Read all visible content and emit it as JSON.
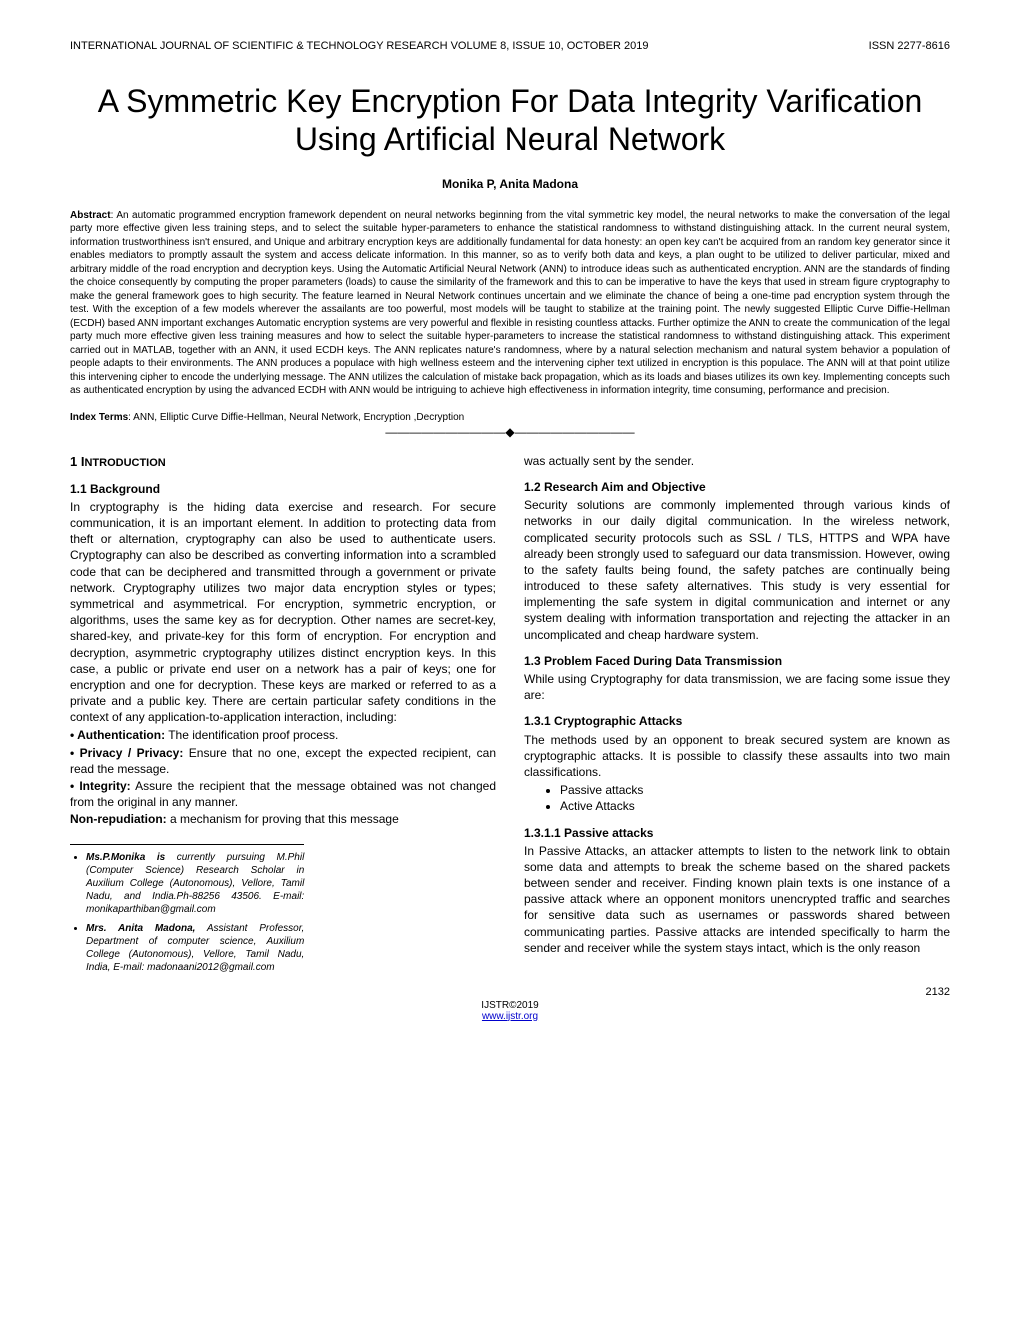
{
  "header": {
    "journal": "INTERNATIONAL JOURNAL OF SCIENTIFIC & TECHNOLOGY RESEARCH VOLUME 8, ISSUE 10, OCTOBER 2019",
    "issn": "ISSN 2277-8616"
  },
  "title": "A Symmetric Key Encryption For Data Integrity Varification Using Artificial Neural Network",
  "authors": "Monika P, Anita Madona",
  "abstract": {
    "label": "Abstract",
    "text": ": An automatic programmed encryption framework dependent on neural networks beginning from the vital symmetric key model, the neural networks to make the conversation of the legal party more effective given less training steps, and to select the suitable hyper-parameters to enhance the statistical randomness to withstand distinguishing attack. In the current neural system, information trustworthiness isn't ensured, and Unique and arbitrary encryption keys are additionally fundamental for data honesty: an open key can't be acquired from an random key generator since it enables mediators to promptly assault the system and access delicate information. In this manner, so as to verify both data and keys, a plan ought to be utilized to deliver particular, mixed and arbitrary middle of the road encryption and decryption keys. Using the Automatic Artificial Neural Network (ANN) to introduce ideas such as authenticated encryption.  ANN are the standards of finding the choice consequently by computing the proper parameters (loads) to cause the similarity of the framework and this to can be imperative to have the keys that used in stream figure cryptography to make the general framework goes to high security. The feature learned in Neural Network continues uncertain and we eliminate the chance of being a one-time pad encryption system through the test. With the exception of a few models wherever the assailants are too powerful, most models will be taught to stabilize at the training point. The newly suggested Elliptic Curve Diffie-Hellman (ECDH) based ANN important exchanges Automatic encryption systems are very powerful and flexible in resisting countless attacks. Further optimize the ANN to create the communication of the legal party much more effective given less training measures and how to select the suitable hyper-parameters to increase the statistical randomness to withstand distinguishing attack. This experiment carried out in MATLAB, together with an ANN, it used ECDH keys. The ANN replicates nature's randomness, where by a natural selection mechanism and natural system behavior a population of people adapts to their environments. The ANN produces a populace with high wellness esteem and the intervening cipher text utilized in encryption is this populace. The ANN will at that point utilize this intervening cipher to encode the underlying message. The ANN utilizes the calculation of mistake back propagation, which as its loads and biases utilizes its own key. Implementing concepts such as authenticated encryption by using the advanced ECDH with ANN would be intriguing to achieve high effectiveness in information integrity, time consuming, performance and precision."
  },
  "indexTerms": {
    "label": "Index Terms",
    "text": ": ANN, Elliptic Curve Diffie-Hellman, Neural Network, Encryption ,Decryption"
  },
  "divider": "————————————————————",
  "leftCol": {
    "h1": "1 INTRODUCTION",
    "h11": "1.1 Background",
    "p11": "In cryptography is the hiding data exercise and research. For secure communication, it is an important element. In addition to protecting data from theft or alternation, cryptography can also be used to authenticate users. Cryptography can also be described as converting information into a scrambled code that can be deciphered and transmitted through a government or private network. Cryptography utilizes two major data encryption styles or types; symmetrical and asymmetrical. For encryption, symmetric encryption, or algorithms, uses the same key as for decryption. Other names are secret-key, shared-key, and private-key for this form of encryption. For encryption and decryption, asymmetric cryptography utilizes distinct encryption keys. In this case, a public or private end user on a network has a pair of keys; one for encryption and one for decryption. These keys are marked or referred to as a private and a public key. There are certain particular safety conditions in the context of any application-to-application interaction, including:",
    "b1label": "• Authentication:",
    "b1text": " The identification proof process.",
    "b2label": "• Privacy / Privacy:",
    "b2text": " Ensure that no one, except the expected recipient, can read the message.",
    "b3label": "• Integrity:",
    "b3text": " Assure the recipient that the message obtained was not changed from the original in any manner.",
    "b4label": "Non-repudiation:",
    "b4text": " a mechanism for proving that this message",
    "footer1name": "Ms.P.Monika is",
    "footer1": " currently pursuing M.Phil (Computer Science) Research Scholar in Auxilium College (Autonomous), Vellore, Tamil Nadu, and India.Ph-88256 43506. E-mail: monikaparthiban@gmail.com",
    "footer2name": "Mrs. Anita Madona,",
    "footer2": " Assistant Professor, Department of computer science, Auxilium  College (Autonomous), Vellore, Tamil Nadu, India, E-mail: madonaani2012@gmail.com"
  },
  "rightCol": {
    "cont": "was actually sent by the sender.",
    "h12": "1.2 Research Aim and Objective",
    "p12": "Security solutions are commonly implemented through various kinds of networks in our daily digital communication. In the wireless network, complicated security protocols such as SSL / TLS, HTTPS and WPA have already been strongly used to safeguard our data transmission. However, owing to the safety faults being found, the safety patches are continually being introduced to these safety alternatives. This study is very essential for implementing the safe system in digital communication and internet or any system dealing with information transportation and rejecting the attacker in an uncomplicated and cheap hardware system.",
    "h13": "1.3 Problem Faced During Data Transmission",
    "p13": "While using Cryptography for data transmission, we are facing some issue they are:",
    "h131": "1.3.1 Cryptographic Attacks",
    "p131": "The methods used by an opponent to break secured system are known as cryptographic attacks. It is possible to classify these assaults into two main classifications.",
    "attack1": "Passive attacks",
    "attack2": "Active Attacks",
    "h1311": "1.3.1.1 Passive attacks",
    "p1311": "In Passive Attacks, an attacker attempts to listen to the network link to obtain some data and attempts to break the scheme based on the shared packets between sender and receiver. Finding known plain texts is one instance of a passive attack where an opponent monitors unencrypted traffic and searches for sensitive data such as usernames or passwords shared between communicating parties. Passive attacks are intended specifically to harm the sender and receiver while the system stays intact, which is the only reason"
  },
  "footer": {
    "pageNumber": "2132",
    "copyright": "IJSTR©2019",
    "link": "www.ijstr.org"
  },
  "colors": {
    "text": "#000000",
    "bg": "#ffffff",
    "link": "#0000cc"
  }
}
